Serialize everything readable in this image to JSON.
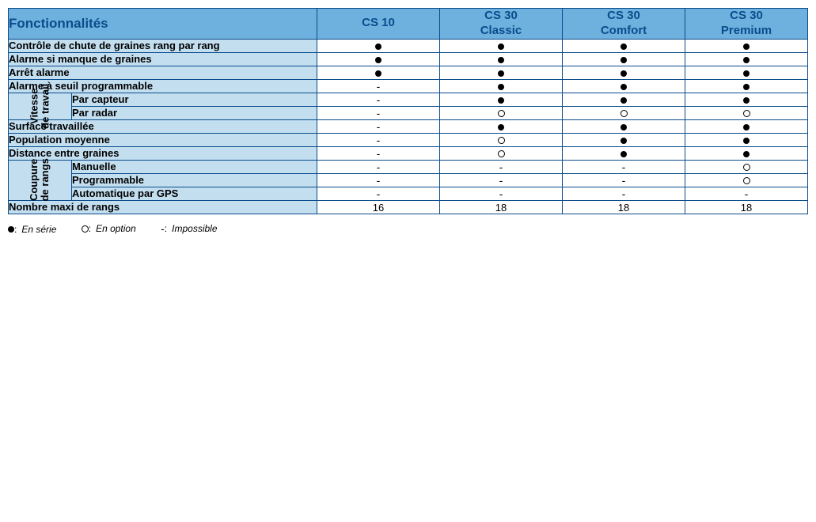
{
  "colors": {
    "header_bg": "#6eb1de",
    "row_bg": "#c3deef",
    "border": "#0a4c8c",
    "text": "#000000",
    "header_text": "#0a4c8c"
  },
  "header": {
    "features_label": "Fonctionnalités",
    "columns": [
      {
        "line1": "CS 10",
        "line2": ""
      },
      {
        "line1": "CS 30",
        "line2": "Classic"
      },
      {
        "line1": "CS 30",
        "line2": "Comfort"
      },
      {
        "line1": "CS 30",
        "line2": "Premium"
      }
    ]
  },
  "rows": [
    {
      "kind": "single",
      "label": "Contrôle de chute de graines rang par rang",
      "values": [
        "filled",
        "filled",
        "filled",
        "filled"
      ]
    },
    {
      "kind": "single",
      "label": "Alarme si manque de graines",
      "values": [
        "filled",
        "filled",
        "filled",
        "filled"
      ]
    },
    {
      "kind": "single",
      "label": "Arrêt alarme",
      "values": [
        "filled",
        "filled",
        "filled",
        "filled"
      ]
    },
    {
      "kind": "single",
      "label": "Alarme à seuil programmable",
      "values": [
        "dash",
        "filled",
        "filled",
        "filled"
      ]
    },
    {
      "kind": "group_start",
      "group_label_line1": "Vitesse",
      "group_label_line2": "de travail",
      "rowspan": 2,
      "sublabel": "Par capteur",
      "values": [
        "dash",
        "filled",
        "filled",
        "filled"
      ]
    },
    {
      "kind": "group_cont",
      "sublabel": "Par radar",
      "values": [
        "dash",
        "open",
        "open",
        "open"
      ]
    },
    {
      "kind": "single",
      "label": "Surface travaillée",
      "values": [
        "dash",
        "filled",
        "filled",
        "filled"
      ]
    },
    {
      "kind": "single",
      "label": "Population moyenne",
      "values": [
        "dash",
        "open",
        "filled",
        "filled"
      ]
    },
    {
      "kind": "single",
      "label": "Distance entre graines",
      "values": [
        "dash",
        "open",
        "filled",
        "filled"
      ]
    },
    {
      "kind": "group_start",
      "group_label_line1": "Coupure",
      "group_label_line2": "de rangs",
      "rowspan": 3,
      "sublabel": "Manuelle",
      "values": [
        "dash",
        "dash",
        "dash",
        "open"
      ]
    },
    {
      "kind": "group_cont",
      "sublabel": "Programmable",
      "values": [
        "dash",
        "dash",
        "dash",
        "open"
      ]
    },
    {
      "kind": "group_cont",
      "sublabel": "Automatique par GPS",
      "values": [
        "dash",
        "dash",
        "dash",
        "dash"
      ]
    },
    {
      "kind": "single",
      "label": "Nombre maxi de rangs",
      "values": [
        "16",
        "18",
        "18",
        "18"
      ],
      "value_type": "text"
    }
  ],
  "legend": {
    "filled": "En série",
    "open": "En option",
    "dash": "Impossible"
  }
}
